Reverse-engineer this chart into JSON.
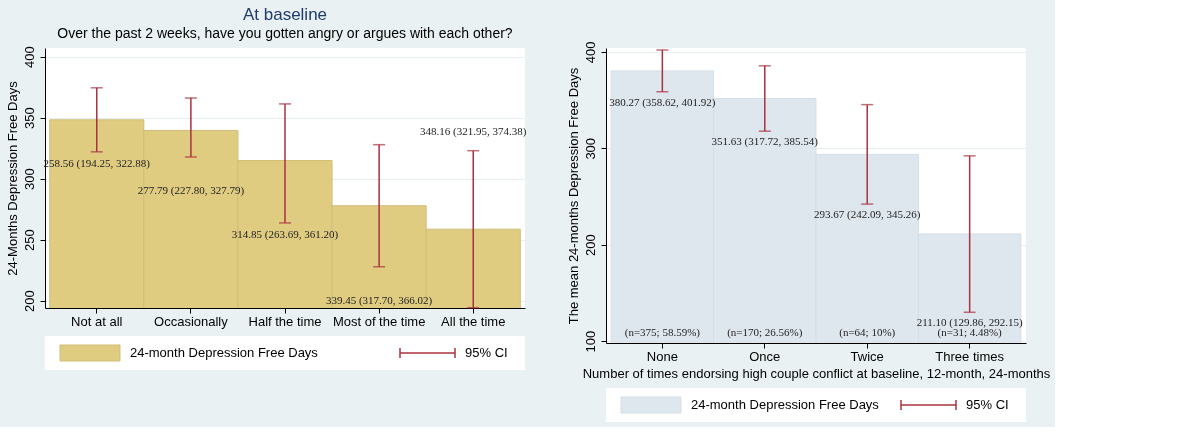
{
  "chart_data": [
    {
      "type": "bar",
      "title": "At baseline",
      "subtitle": "Over the past 2 weeks, have you gotten angry or argues with each other?",
      "ylabel": "24-Months Depression Free Days",
      "categories": [
        "Not at all",
        "Occasionally",
        "Half the time",
        "Most of the time",
        "All the time"
      ],
      "series": [
        {
          "name": "24-month Depression Free Days",
          "color": "#e0cc80",
          "values": [
            348.16,
            339.45,
            314.85,
            277.79,
            258.56
          ],
          "errors": [
            [
              321.95,
              374.38
            ],
            [
              317.7,
              366.02
            ],
            [
              263.69,
              361.2
            ],
            [
              227.8,
              327.79
            ],
            [
              194.25,
              322.88
            ]
          ]
        }
      ],
      "ylim": [
        194,
        407
      ],
      "yticks": [
        200,
        250,
        300,
        350,
        400
      ],
      "grid": "y",
      "legend": "bottom",
      "annotations": [
        "258.56 (194.25, 322.88)",
        "277.79 (227.80, 327.79)",
        "314.85 (263.69, 361.20)",
        "339.45 (317.70, 366.02)",
        "348.16 (321.95, 374.38)",
        "95% CI"
      ]
    },
    {
      "type": "bar",
      "ylabel": "The mean 24-months Depression Free Days",
      "xlabel": "Number of times endorsing high couple conflict at baseline, 12-month, 24-months",
      "categories": [
        "None",
        "Once",
        "Twice",
        "Three times"
      ],
      "series": [
        {
          "name": "24-month Depression Free Days",
          "color": "#dfe7ee",
          "values": [
            380.27,
            351.63,
            293.67,
            211.1
          ],
          "errors": [
            [
              358.62,
              401.92
            ],
            [
              317.72,
              385.54
            ],
            [
              242.09,
              345.26
            ],
            [
              129.86,
              292.15
            ]
          ],
          "value_labels": [
            "380.27 (358.62, 401.92)",
            "351.63 (317.72, 385.54)",
            "293.67 (242.09, 345.26)",
            "211.10 (129.86, 292.15)"
          ]
        }
      ],
      "ylim": [
        98,
        404
      ],
      "yticks": [
        100,
        200,
        300,
        400
      ],
      "grid": "y",
      "legend": "bottom",
      "annotations": [
        "(n=375; 58.59%)",
        "(n=170; 26.56%)",
        "(n=64; 10%)",
        "(n=31; 4.48%)",
        "95% CI"
      ]
    }
  ]
}
